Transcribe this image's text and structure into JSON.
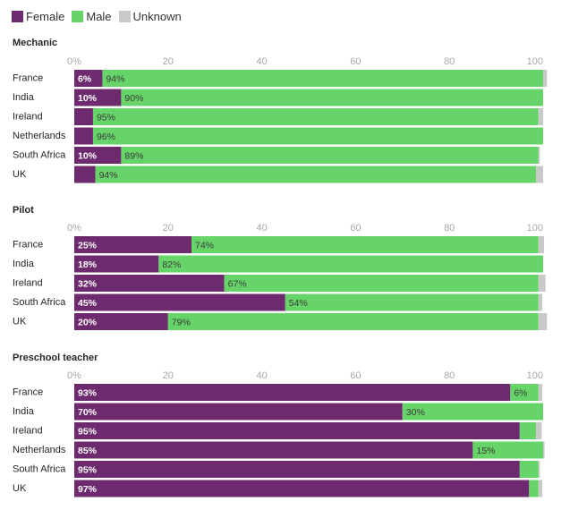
{
  "colors": {
    "female": "#6e2a6e",
    "male": "#66d468",
    "unknown": "#c9c9c9"
  },
  "legend": [
    {
      "key": "female",
      "label": "Female",
      "color": "#6e2a6e"
    },
    {
      "key": "male",
      "label": "Male",
      "color": "#66d468"
    },
    {
      "key": "unknown",
      "label": "Unknown",
      "color": "#c9c9c9"
    }
  ],
  "chart_data": [
    {
      "type": "bar",
      "stacked": true,
      "orientation": "horizontal",
      "title": "Mechanic",
      "xlim": [
        0,
        100
      ],
      "xticks": [
        0,
        20,
        40,
        60,
        80,
        100
      ],
      "tick_labels": [
        "0%",
        "20",
        "40",
        "60",
        "80",
        "100"
      ],
      "categories": [
        "France",
        "India",
        "Ireland",
        "Netherlands",
        "South Africa",
        "UK"
      ],
      "series": [
        {
          "name": "Female",
          "values": [
            6,
            10,
            4,
            4,
            10,
            4.5
          ]
        },
        {
          "name": "Male",
          "values": [
            94,
            90,
            95,
            96,
            89,
            94
          ]
        },
        {
          "name": "Unknown",
          "values": [
            0.8,
            0,
            1,
            0,
            0.3,
            1.5
          ]
        }
      ],
      "data_labels": {
        "Female": [
          "6%",
          "10%",
          "",
          "",
          "10%",
          ""
        ],
        "Male": [
          "94%",
          "90%",
          "95%",
          "96%",
          "89%",
          "94%"
        ]
      }
    },
    {
      "type": "bar",
      "stacked": true,
      "orientation": "horizontal",
      "title": "Pilot",
      "xlim": [
        0,
        100
      ],
      "xticks": [
        0,
        20,
        40,
        60,
        80,
        100
      ],
      "tick_labels": [
        "0%",
        "20",
        "40",
        "60",
        "80",
        "100"
      ],
      "categories": [
        "France",
        "India",
        "Ireland",
        "South Africa",
        "UK"
      ],
      "series": [
        {
          "name": "Female",
          "values": [
            25,
            18,
            32,
            45,
            20
          ]
        },
        {
          "name": "Male",
          "values": [
            74,
            82,
            67,
            54,
            79
          ]
        },
        {
          "name": "Unknown",
          "values": [
            1.2,
            0,
            1.5,
            0.8,
            1.8
          ]
        }
      ],
      "data_labels": {
        "Female": [
          "25%",
          "18%",
          "32%",
          "45%",
          "20%"
        ],
        "Male": [
          "74%",
          "82%",
          "67%",
          "54%",
          "79%"
        ]
      }
    },
    {
      "type": "bar",
      "stacked": true,
      "orientation": "horizontal",
      "title": "Preschool teacher",
      "xlim": [
        0,
        100
      ],
      "xticks": [
        0,
        20,
        40,
        60,
        80,
        100
      ],
      "tick_labels": [
        "0%",
        "20",
        "40",
        "60",
        "80",
        "100"
      ],
      "categories": [
        "France",
        "India",
        "Ireland",
        "Netherlands",
        "South Africa",
        "UK"
      ],
      "series": [
        {
          "name": "Female",
          "values": [
            93,
            70,
            95,
            85,
            95,
            97
          ]
        },
        {
          "name": "Male",
          "values": [
            6,
            30,
            3.5,
            15,
            4,
            2
          ]
        },
        {
          "name": "Unknown",
          "values": [
            0.8,
            0,
            1.2,
            0.3,
            0.3,
            0.8
          ]
        }
      ],
      "data_labels": {
        "Female": [
          "93%",
          "70%",
          "95%",
          "85%",
          "95%",
          "97%"
        ],
        "Male": [
          "6%",
          "30%",
          "",
          "15%",
          "",
          ""
        ]
      }
    }
  ]
}
